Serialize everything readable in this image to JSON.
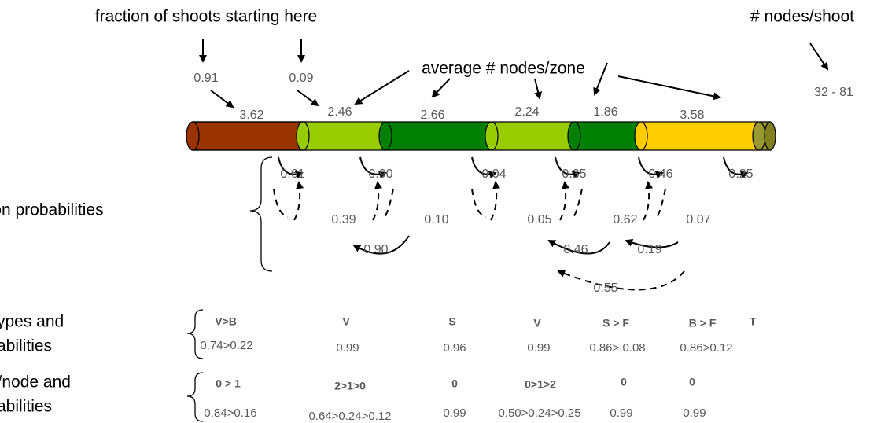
{
  "labels": {
    "fraction": "fraction of shoots starting here",
    "nodes_per_shoot": "# nodes/shoot",
    "average": "average # nodes/zone",
    "transition": "transition probabilities",
    "zone_types": [
      "zone types and",
      "probabilities"
    ],
    "flowers": [
      "flowers/node and",
      "probabilities"
    ]
  },
  "start_fractions": [
    "0.91",
    "0.09"
  ],
  "nodes_range": "32 - 81",
  "zone_averages": [
    "3.62",
    "2.46",
    "2.66",
    "2.24",
    "1.86",
    "3.58"
  ],
  "self_transitions": [
    "0.61",
    "0.90",
    "0.04",
    "0.35",
    "0.46",
    "0.25"
  ],
  "forward_transitions": [
    "0.39",
    "0.10",
    "0.05",
    "0.62",
    "0.07"
  ],
  "backward_transitions": [
    "0.90",
    "0.46",
    "0.19",
    "0.55"
  ],
  "zone_types": [
    "V>B",
    "V",
    "S",
    "V",
    "S > F",
    "B > F",
    "T"
  ],
  "zone_type_probabilities": [
    "0.74>0.22",
    "0.99",
    "0.96",
    "0.99",
    "0.86>.0.08",
    "0.86>0.12"
  ],
  "flowers": [
    "0 > 1",
    "2>1>0",
    "0",
    "0>1>2",
    "0",
    "0"
  ],
  "flower_probabilities": [
    "0.84>0.16",
    "0.64>0.24>0.12",
    "0.99",
    "0.50>0.24>0.25",
    "0.99",
    "0.99"
  ]
}
